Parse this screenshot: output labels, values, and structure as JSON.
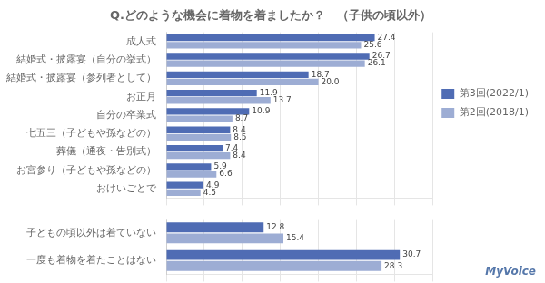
{
  "chart_data": [
    {
      "type": "bar",
      "title": "Q.どのような機会に着物を着ましたか？　（子供の頃以外）",
      "orientation": "horizontal",
      "categories": [
        "成人式",
        "結婚式・披露宴（自分の挙式）",
        "結婚式・披露宴（参列者として）",
        "お正月",
        "自分の卒業式",
        "七五三（子どもや孫などの）",
        "葬儀（通夜・告別式）",
        "お宮参り（子どもや孫などの）",
        "おけいごとで"
      ],
      "series": [
        {
          "name": "第3回(2022/1)",
          "color": "#4F6CB4",
          "values": [
            27.4,
            26.7,
            18.7,
            11.9,
            10.9,
            8.4,
            7.4,
            5.9,
            4.9
          ]
        },
        {
          "name": "第2回(2018/1)",
          "color": "#9DADD4",
          "values": [
            25.6,
            26.1,
            20.0,
            13.7,
            8.7,
            8.5,
            8.4,
            6.6,
            4.5
          ],
          "value_labels": [
            "25.6",
            "26.1",
            "20.0",
            "13.7",
            "8.7",
            "8.5",
            "8.4",
            "6.6",
            "4.5"
          ]
        }
      ],
      "xlim": [
        0,
        35
      ],
      "xticks": [
        0,
        5,
        10,
        15,
        20,
        25,
        30,
        35
      ],
      "grid": true,
      "legend": "right",
      "data_labels": true,
      "tick_labels": "y"
    },
    {
      "type": "bar",
      "orientation": "horizontal",
      "categories": [
        "子どもの頃以外は着ていない",
        "一度も着物を着たことはない"
      ],
      "series": [
        {
          "color": "#4F6CB4",
          "values": [
            12.8,
            30.7
          ]
        },
        {
          "color": "#9DADD4",
          "values": [
            15.4,
            28.3
          ]
        }
      ],
      "xlim": [
        0,
        35
      ],
      "xticks": [
        0,
        5,
        10,
        15,
        20,
        25,
        30,
        35
      ],
      "grid": true,
      "data_labels": true,
      "tick_labels": "y",
      "annotations": [
        "MyVoice"
      ]
    }
  ]
}
